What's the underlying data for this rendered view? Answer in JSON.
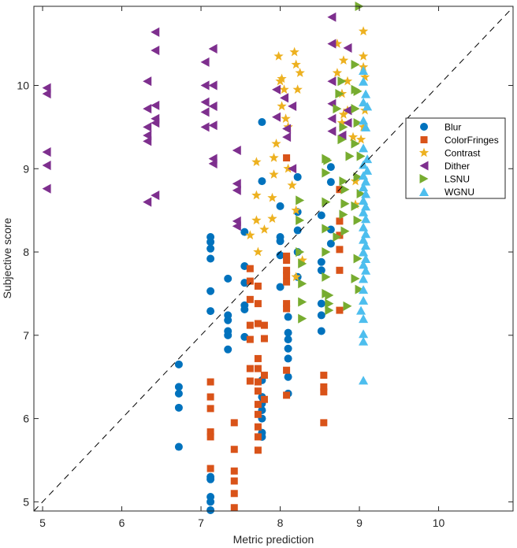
{
  "chart_data": {
    "type": "scatter",
    "title": "",
    "xlabel": "Metric prediction",
    "ylabel": "Subjective score",
    "xlim": [
      4.89,
      10.94
    ],
    "ylim": [
      4.89,
      10.95
    ],
    "xticks": [
      "5",
      "6",
      "7",
      "8",
      "9",
      "10"
    ],
    "yticks": [
      "5",
      "6",
      "7",
      "8",
      "9",
      "10"
    ],
    "grid": false,
    "legend_position": "right",
    "reference_line": "y = x (dashed)",
    "series": [
      {
        "name": "Blur",
        "marker": "circle",
        "color": "#0072BD",
        "points": [
          [
            6.72,
            6.65
          ],
          [
            6.72,
            6.38
          ],
          [
            6.72,
            6.3
          ],
          [
            6.72,
            6.13
          ],
          [
            6.72,
            5.66
          ],
          [
            7.12,
            8.18
          ],
          [
            7.12,
            8.12
          ],
          [
            7.12,
            8.04
          ],
          [
            7.12,
            7.92
          ],
          [
            7.12,
            7.53
          ],
          [
            7.12,
            7.29
          ],
          [
            7.12,
            5.3
          ],
          [
            7.12,
            5.27
          ],
          [
            7.12,
            5.06
          ],
          [
            7.12,
            5.0
          ],
          [
            7.12,
            4.9
          ],
          [
            7.34,
            7.68
          ],
          [
            7.34,
            7.24
          ],
          [
            7.34,
            7.18
          ],
          [
            7.34,
            7.05
          ],
          [
            7.34,
            7.0
          ],
          [
            7.34,
            6.83
          ],
          [
            7.55,
            8.24
          ],
          [
            7.55,
            7.83
          ],
          [
            7.55,
            7.63
          ],
          [
            7.55,
            7.36
          ],
          [
            7.55,
            7.31
          ],
          [
            7.55,
            6.98
          ],
          [
            7.77,
            9.56
          ],
          [
            7.77,
            8.85
          ],
          [
            7.77,
            6.46
          ],
          [
            7.77,
            6.26
          ],
          [
            7.77,
            6.18
          ],
          [
            7.77,
            6.1
          ],
          [
            7.77,
            6.0
          ],
          [
            7.77,
            5.83
          ],
          [
            7.77,
            5.78
          ],
          [
            8.0,
            8.55
          ],
          [
            8.0,
            8.18
          ],
          [
            8.0,
            8.13
          ],
          [
            8.0,
            7.96
          ],
          [
            8.0,
            7.58
          ],
          [
            8.1,
            7.22
          ],
          [
            8.1,
            7.03
          ],
          [
            8.1,
            6.95
          ],
          [
            8.1,
            6.84
          ],
          [
            8.1,
            6.72
          ],
          [
            8.1,
            6.5
          ],
          [
            8.1,
            6.3
          ],
          [
            8.22,
            8.9
          ],
          [
            8.22,
            8.48
          ],
          [
            8.22,
            8.26
          ],
          [
            8.22,
            8.0
          ],
          [
            8.22,
            7.7
          ],
          [
            8.52,
            8.44
          ],
          [
            8.52,
            7.88
          ],
          [
            8.52,
            7.78
          ],
          [
            8.52,
            7.38
          ],
          [
            8.52,
            7.24
          ],
          [
            8.52,
            7.05
          ],
          [
            8.64,
            9.02
          ],
          [
            8.64,
            8.84
          ],
          [
            8.64,
            8.27
          ],
          [
            8.64,
            8.1
          ]
        ]
      },
      {
        "name": "ColorFringes",
        "marker": "square",
        "color": "#D95319",
        "points": [
          [
            7.12,
            6.44
          ],
          [
            7.12,
            6.26
          ],
          [
            7.12,
            6.12
          ],
          [
            7.12,
            5.84
          ],
          [
            7.12,
            5.78
          ],
          [
            7.12,
            5.4
          ],
          [
            7.42,
            5.95
          ],
          [
            7.42,
            5.63
          ],
          [
            7.42,
            5.37
          ],
          [
            7.42,
            5.25
          ],
          [
            7.42,
            5.1
          ],
          [
            7.42,
            4.93
          ],
          [
            7.62,
            7.8
          ],
          [
            7.62,
            7.65
          ],
          [
            7.62,
            7.43
          ],
          [
            7.62,
            7.12
          ],
          [
            7.62,
            6.95
          ],
          [
            7.62,
            6.6
          ],
          [
            7.62,
            6.45
          ],
          [
            7.72,
            7.59
          ],
          [
            7.72,
            7.38
          ],
          [
            7.72,
            7.14
          ],
          [
            7.72,
            6.72
          ],
          [
            7.72,
            6.6
          ],
          [
            7.72,
            6.44
          ],
          [
            7.72,
            6.33
          ],
          [
            7.72,
            6.17
          ],
          [
            7.72,
            6.05
          ],
          [
            7.72,
            5.9
          ],
          [
            7.72,
            5.78
          ],
          [
            7.72,
            5.62
          ],
          [
            7.8,
            7.12
          ],
          [
            7.8,
            6.96
          ],
          [
            7.8,
            6.52
          ],
          [
            7.8,
            6.23
          ],
          [
            8.08,
            9.13
          ],
          [
            8.08,
            7.95
          ],
          [
            8.08,
            7.9
          ],
          [
            8.08,
            7.78
          ],
          [
            8.08,
            7.72
          ],
          [
            8.08,
            7.64
          ],
          [
            8.08,
            7.38
          ],
          [
            8.08,
            7.32
          ],
          [
            8.08,
            6.58
          ],
          [
            8.08,
            6.28
          ],
          [
            8.55,
            6.52
          ],
          [
            8.55,
            6.38
          ],
          [
            8.55,
            6.32
          ],
          [
            8.55,
            5.95
          ],
          [
            8.75,
            8.75
          ],
          [
            8.75,
            8.37
          ],
          [
            8.75,
            8.2
          ],
          [
            8.75,
            8.03
          ],
          [
            8.75,
            7.78
          ],
          [
            8.75,
            7.3
          ]
        ]
      },
      {
        "name": "Contrast",
        "marker": "star",
        "color": "#EDB120",
        "points": [
          [
            7.62,
            8.2
          ],
          [
            7.7,
            9.08
          ],
          [
            7.7,
            8.68
          ],
          [
            7.7,
            8.38
          ],
          [
            7.8,
            8.27
          ],
          [
            7.72,
            8.0
          ],
          [
            7.9,
            8.65
          ],
          [
            7.9,
            8.4
          ],
          [
            7.92,
            8.93
          ],
          [
            7.92,
            9.13
          ],
          [
            7.95,
            9.3
          ],
          [
            7.98,
            10.35
          ],
          [
            8.0,
            10.05
          ],
          [
            8.02,
            10.08
          ],
          [
            8.02,
            9.75
          ],
          [
            8.05,
            9.95
          ],
          [
            8.07,
            9.6
          ],
          [
            8.1,
            9.5
          ],
          [
            8.1,
            9.0
          ],
          [
            8.15,
            8.8
          ],
          [
            8.18,
            10.4
          ],
          [
            8.2,
            10.25
          ],
          [
            8.22,
            9.95
          ],
          [
            8.25,
            10.15
          ],
          [
            8.2,
            8.5
          ],
          [
            8.2,
            7.7
          ],
          [
            8.28,
            7.9
          ],
          [
            8.72,
            10.5
          ],
          [
            8.72,
            10.15
          ],
          [
            8.8,
            10.3
          ],
          [
            8.78,
            9.9
          ],
          [
            8.8,
            9.65
          ],
          [
            8.85,
            9.7
          ],
          [
            8.78,
            9.55
          ],
          [
            8.85,
            10.05
          ],
          [
            8.92,
            9.38
          ],
          [
            8.95,
            8.85
          ],
          [
            8.95,
            8.57
          ],
          [
            9.05,
            10.65
          ],
          [
            9.05,
            10.35
          ],
          [
            9.07,
            10.1
          ],
          [
            9.07,
            9.7
          ],
          [
            9.05,
            9.5
          ],
          [
            9.02,
            9.35
          ],
          [
            9.05,
            10.22
          ]
        ]
      },
      {
        "name": "Dither",
        "marker": "triangle-left",
        "color": "#7E2F8E",
        "points": [
          [
            5.05,
            9.97
          ],
          [
            5.05,
            9.9
          ],
          [
            5.05,
            9.2
          ],
          [
            5.05,
            9.04
          ],
          [
            5.05,
            8.76
          ],
          [
            6.32,
            10.05
          ],
          [
            6.32,
            9.72
          ],
          [
            6.32,
            9.5
          ],
          [
            6.32,
            9.4
          ],
          [
            6.32,
            9.33
          ],
          [
            6.32,
            8.6
          ],
          [
            6.42,
            10.64
          ],
          [
            6.42,
            10.42
          ],
          [
            6.42,
            9.76
          ],
          [
            6.42,
            9.6
          ],
          [
            6.42,
            9.55
          ],
          [
            6.42,
            8.68
          ],
          [
            7.05,
            10.28
          ],
          [
            7.05,
            10.0
          ],
          [
            7.05,
            9.8
          ],
          [
            7.05,
            9.68
          ],
          [
            7.05,
            9.5
          ],
          [
            7.15,
            10.44
          ],
          [
            7.15,
            10.0
          ],
          [
            7.15,
            9.75
          ],
          [
            7.15,
            9.52
          ],
          [
            7.15,
            9.12
          ],
          [
            7.15,
            9.06
          ],
          [
            7.45,
            9.22
          ],
          [
            7.45,
            8.82
          ],
          [
            7.45,
            8.74
          ],
          [
            7.45,
            8.37
          ],
          [
            7.45,
            8.31
          ],
          [
            7.95,
            9.95
          ],
          [
            7.95,
            9.62
          ],
          [
            8.05,
            9.85
          ],
          [
            8.08,
            9.48
          ],
          [
            8.08,
            9.38
          ],
          [
            8.15,
            9.0
          ],
          [
            8.15,
            9.75
          ],
          [
            8.65,
            10.82
          ],
          [
            8.65,
            10.5
          ],
          [
            8.65,
            10.05
          ],
          [
            8.65,
            9.78
          ],
          [
            8.65,
            9.6
          ],
          [
            8.65,
            9.45
          ],
          [
            8.85,
            10.45
          ],
          [
            8.85,
            9.7
          ],
          [
            8.85,
            9.55
          ],
          [
            8.78,
            9.4
          ]
        ]
      },
      {
        "name": "LSNU",
        "marker": "triangle-right",
        "color": "#77AC30",
        "points": [
          [
            9.0,
            10.95
          ],
          [
            8.95,
            10.25
          ],
          [
            8.95,
            9.95
          ],
          [
            8.78,
            9.35
          ],
          [
            8.88,
            9.15
          ],
          [
            8.58,
            9.12
          ],
          [
            8.58,
            8.95
          ],
          [
            8.58,
            8.6
          ],
          [
            8.58,
            8.28
          ],
          [
            8.58,
            8.0
          ],
          [
            8.58,
            7.7
          ],
          [
            8.58,
            7.5
          ],
          [
            8.62,
            7.48
          ],
          [
            8.62,
            7.38
          ],
          [
            8.62,
            7.3
          ],
          [
            8.72,
            9.72
          ],
          [
            8.75,
            9.9
          ],
          [
            8.78,
            10.05
          ],
          [
            8.8,
            9.5
          ],
          [
            8.8,
            8.85
          ],
          [
            8.8,
            8.45
          ],
          [
            8.82,
            8.75
          ],
          [
            8.82,
            8.58
          ],
          [
            8.82,
            8.25
          ],
          [
            8.72,
            8.18
          ],
          [
            8.95,
            9.3
          ],
          [
            8.98,
            9.55
          ],
          [
            8.95,
            9.72
          ],
          [
            8.98,
            9.93
          ],
          [
            8.98,
            8.9
          ],
          [
            8.95,
            8.55
          ],
          [
            9.02,
            8.7
          ],
          [
            8.98,
            8.38
          ],
          [
            8.98,
            7.92
          ],
          [
            8.95,
            7.68
          ],
          [
            9.0,
            7.55
          ],
          [
            8.25,
            8.62
          ],
          [
            8.25,
            8.38
          ],
          [
            8.25,
            8.0
          ],
          [
            8.28,
            7.86
          ],
          [
            8.28,
            7.62
          ],
          [
            8.28,
            7.4
          ],
          [
            8.28,
            7.2
          ],
          [
            8.6,
            9.1
          ],
          [
            8.85,
            7.35
          ],
          [
            9.02,
            9.15
          ]
        ]
      },
      {
        "name": "WGNU",
        "marker": "triangle-up",
        "color": "#4DBEEE",
        "points": [
          [
            9.05,
            10.18
          ],
          [
            9.05,
            10.05
          ],
          [
            9.08,
            9.9
          ],
          [
            9.05,
            9.8
          ],
          [
            9.1,
            9.75
          ],
          [
            9.05,
            9.58
          ],
          [
            9.08,
            9.5
          ],
          [
            9.05,
            9.25
          ],
          [
            9.1,
            9.12
          ],
          [
            9.05,
            9.05
          ],
          [
            9.1,
            8.98
          ],
          [
            9.05,
            8.92
          ],
          [
            9.08,
            8.85
          ],
          [
            9.05,
            8.78
          ],
          [
            9.08,
            8.7
          ],
          [
            9.05,
            8.62
          ],
          [
            9.08,
            8.55
          ],
          [
            9.05,
            8.48
          ],
          [
            9.08,
            8.4
          ],
          [
            9.05,
            8.3
          ],
          [
            9.08,
            8.22
          ],
          [
            9.05,
            8.15
          ],
          [
            9.08,
            8.08
          ],
          [
            9.05,
            8.0
          ],
          [
            9.08,
            7.92
          ],
          [
            9.05,
            7.85
          ],
          [
            9.08,
            7.78
          ],
          [
            9.05,
            7.68
          ],
          [
            9.05,
            7.55
          ],
          [
            9.05,
            7.42
          ],
          [
            9.02,
            7.3
          ],
          [
            9.05,
            7.2
          ],
          [
            9.05,
            7.02
          ],
          [
            9.05,
            6.93
          ],
          [
            9.05,
            6.46
          ]
        ]
      }
    ],
    "legend": [
      "Blur",
      "ColorFringes",
      "Contrast",
      "Dither",
      "LSNU",
      "WGNU"
    ]
  }
}
